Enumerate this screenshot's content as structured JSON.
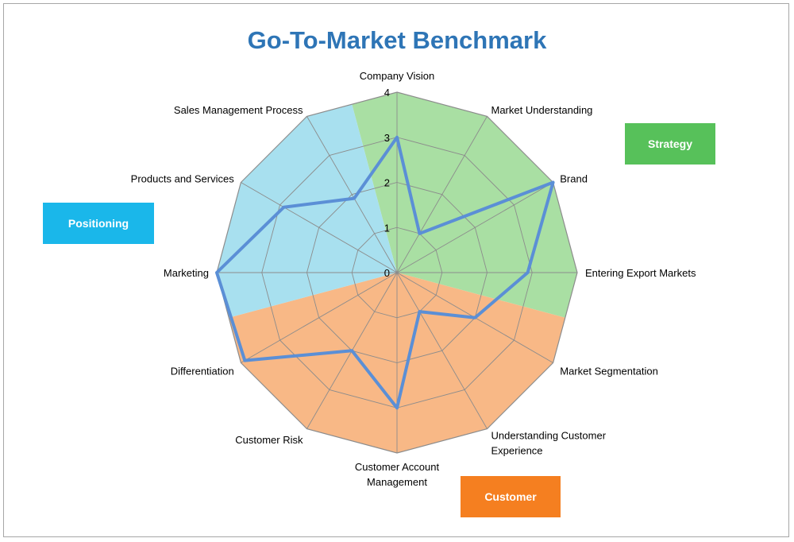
{
  "title": "Go-To-Market Benchmark",
  "chart_data": {
    "type": "radar",
    "title": "Go-To-Market Benchmark",
    "categories": [
      "Company Vision",
      "Market Understanding",
      "Brand",
      "Entering Export Markets",
      "Market Segmentation",
      "Understanding Customer Experience",
      "Customer Account Management",
      "Customer Risk",
      "Differentiation",
      "Marketing",
      "Products and Services",
      "Sales Management Process"
    ],
    "label_lines": [
      [
        "Company Vision"
      ],
      [
        "Market Understanding"
      ],
      [
        "Brand"
      ],
      [
        "Entering Export Markets"
      ],
      [
        "Market Segmentation"
      ],
      [
        "Understanding Customer",
        "Experience"
      ],
      [
        "Customer Account",
        "Management"
      ],
      [
        "Customer Risk"
      ],
      [
        "Differentiation"
      ],
      [
        "Marketing"
      ],
      [
        "Products and Services"
      ],
      [
        "Sales Management Process"
      ]
    ],
    "series": [
      {
        "values": [
          3,
          1,
          4,
          2.9,
          2,
          1,
          3,
          2,
          3.9,
          4,
          2.9,
          1.9
        ],
        "color": "#5b8fd6"
      }
    ],
    "rlim": [
      0,
      4
    ],
    "ticks": [
      "0",
      "1",
      "2",
      "3",
      "4"
    ],
    "groups": [
      {
        "label": "Strategy",
        "color": "#a9dfa3",
        "legend_color": "#57c15a",
        "span": [
          11.5,
          3.5
        ]
      },
      {
        "label": "Customer",
        "color": "#f8b886",
        "legend_color": "#f57f20",
        "span": [
          3.5,
          8.5
        ]
      },
      {
        "label": "Positioning",
        "color": "#a8e0ef",
        "legend_color": "#1ab7ea",
        "span": [
          8.5,
          11.5
        ]
      }
    ],
    "grid": true
  }
}
